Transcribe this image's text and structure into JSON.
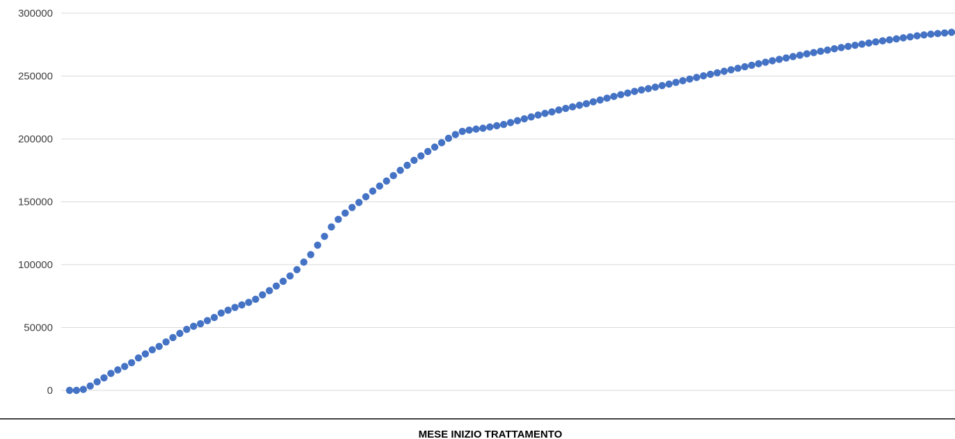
{
  "chart_data": {
    "type": "scatter",
    "title": "",
    "xlabel": "MESE INIZIO TRATTAMENTO",
    "ylabel": "",
    "ylim": [
      0,
      300000
    ],
    "yticks": [
      "0",
      "50000",
      "100000",
      "150000",
      "200000",
      "250000",
      "300000"
    ],
    "grid": true,
    "legend": "none",
    "marker_color": "#4472C4",
    "gridline_color": "#D9D9D9",
    "axis_line_color": "#000000",
    "x": [
      1,
      2,
      3,
      4,
      5,
      6,
      7,
      8,
      9,
      10,
      11,
      12,
      13,
      14,
      15,
      16,
      17,
      18,
      19,
      20,
      21,
      22,
      23,
      24,
      25,
      26,
      27,
      28,
      29,
      30,
      31,
      32,
      33,
      34,
      35,
      36,
      37,
      38,
      39,
      40,
      41,
      42,
      43,
      44,
      45,
      46,
      47,
      48,
      49,
      50,
      51,
      52,
      53,
      54,
      55,
      56,
      57,
      58,
      59,
      60,
      61,
      62,
      63,
      64,
      65,
      66,
      67,
      68,
      69,
      70,
      71,
      72,
      73,
      74,
      75,
      76,
      77,
      78,
      79,
      80,
      81,
      82,
      83,
      84,
      85,
      86,
      87,
      88,
      89,
      90,
      91,
      92,
      93,
      94,
      95,
      96,
      97,
      98,
      99,
      100,
      101,
      102,
      103,
      104,
      105,
      106,
      107,
      108,
      109,
      110,
      111,
      112,
      113,
      114,
      115,
      116,
      117,
      118,
      119,
      120,
      121,
      122,
      123,
      124,
      125,
      126,
      127,
      128,
      129
    ],
    "y": [
      0,
      0,
      800,
      3500,
      6800,
      10000,
      13500,
      16300,
      19000,
      22000,
      25800,
      29000,
      32300,
      35000,
      38500,
      42000,
      45300,
      48500,
      51000,
      53000,
      55500,
      58000,
      61500,
      63800,
      66000,
      68000,
      70000,
      72500,
      76000,
      79300,
      83000,
      86800,
      91000,
      96000,
      102000,
      108000,
      115500,
      122500,
      130000,
      136000,
      141000,
      145500,
      149500,
      154000,
      158500,
      162500,
      166500,
      170800,
      175000,
      179000,
      183000,
      186500,
      190000,
      193500,
      197000,
      200500,
      203500,
      206000,
      207000,
      207800,
      208500,
      209500,
      210500,
      211500,
      213000,
      214500,
      216000,
      217500,
      219000,
      220300,
      221500,
      223000,
      224300,
      225500,
      226800,
      228000,
      229500,
      231000,
      232400,
      233800,
      235200,
      236500,
      237800,
      239000,
      240000,
      241200,
      242400,
      243600,
      245000,
      246300,
      247600,
      248900,
      250200,
      251400,
      252600,
      253800,
      255000,
      256200,
      257400,
      258600,
      259800,
      261000,
      262200,
      263300,
      264400,
      265500,
      266600,
      267700,
      268700,
      269700,
      270700,
      271700,
      272700,
      273600,
      274500,
      275400,
      276300,
      277200,
      278000,
      278800,
      279600,
      280400,
      281200,
      282000,
      282700,
      283300,
      283800,
      284300,
      284800
    ]
  }
}
